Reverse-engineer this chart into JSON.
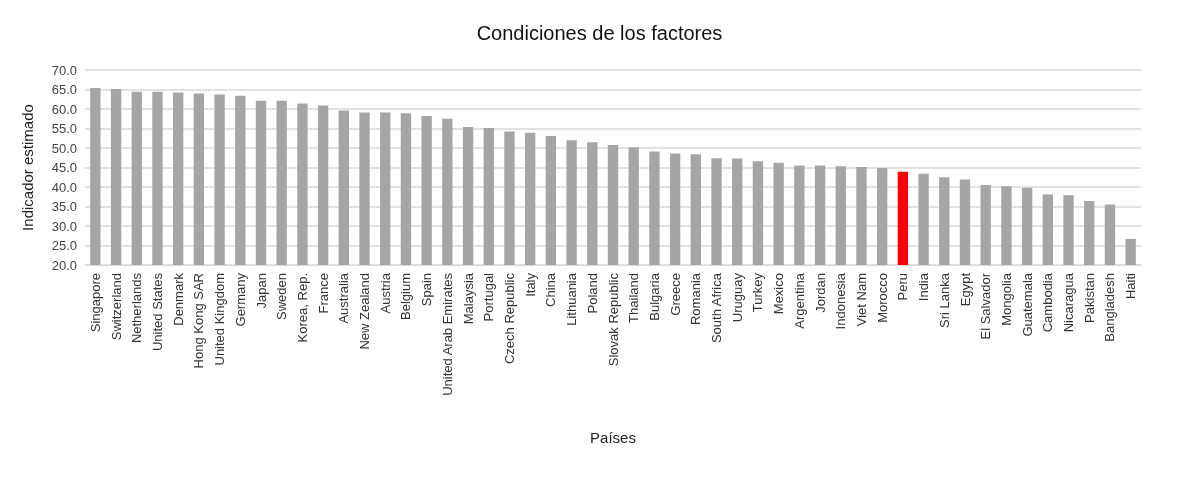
{
  "chart_data": {
    "type": "bar",
    "title": "Condiciones de los factores",
    "xlabel": "Países",
    "ylabel": "Indicador estimado",
    "categories": [
      "Singapore",
      "Switzerland",
      "Netherlands",
      "United States",
      "Denmark",
      "Hong Kong SAR",
      "United Kingdom",
      "Germany",
      "Japan",
      "Sweden",
      "Korea, Rep.",
      "France",
      "Australia",
      "New Zealand",
      "Austria",
      "Belgium",
      "Spain",
      "United Arab Emirates",
      "Malaysia",
      "Portugal",
      "Czech Republic",
      "Italy",
      "China",
      "Lithuania",
      "Poland",
      "Slovak Republic",
      "Thailand",
      "Bulgaria",
      "Greece",
      "Romania",
      "South Africa",
      "Uruguay",
      "Turkey",
      "Mexico",
      "Argentina",
      "Jordan",
      "Indonesia",
      "Viet Nam",
      "Morocco",
      "Peru",
      "India",
      "Sri Lanka",
      "Egypt",
      "El Salvador",
      "Mongolia",
      "Guatemala",
      "Cambodia",
      "Nicaragua",
      "Pakistan",
      "Bangladesh",
      "Haiti"
    ],
    "values": [
      65.4,
      65.1,
      64.4,
      64.4,
      64.2,
      64.0,
      63.7,
      63.4,
      62.1,
      62.1,
      61.4,
      60.9,
      59.6,
      59.1,
      59.1,
      58.9,
      58.2,
      57.5,
      55.4,
      55.1,
      54.2,
      53.9,
      53.1,
      52.0,
      51.5,
      50.8,
      50.2,
      49.1,
      48.6,
      48.4,
      47.4,
      47.3,
      46.6,
      46.2,
      45.5,
      45.5,
      45.3,
      45.1,
      44.9,
      43.9,
      43.4,
      42.5,
      41.9,
      40.5,
      40.2,
      39.8,
      38.1,
      37.9,
      36.4,
      35.5,
      26.7
    ],
    "colors": [
      "#a5a5a5",
      "#a5a5a5",
      "#a5a5a5",
      "#a5a5a5",
      "#a5a5a5",
      "#a5a5a5",
      "#a5a5a5",
      "#a5a5a5",
      "#a5a5a5",
      "#a5a5a5",
      "#a5a5a5",
      "#a5a5a5",
      "#a5a5a5",
      "#a5a5a5",
      "#a5a5a5",
      "#a5a5a5",
      "#a5a5a5",
      "#a5a5a5",
      "#a5a5a5",
      "#a5a5a5",
      "#a5a5a5",
      "#a5a5a5",
      "#a5a5a5",
      "#a5a5a5",
      "#a5a5a5",
      "#a5a5a5",
      "#a5a5a5",
      "#a5a5a5",
      "#a5a5a5",
      "#a5a5a5",
      "#a5a5a5",
      "#a5a5a5",
      "#a5a5a5",
      "#a5a5a5",
      "#a5a5a5",
      "#a5a5a5",
      "#a5a5a5",
      "#a5a5a5",
      "#a5a5a5",
      "#ff0000",
      "#a5a5a5",
      "#a5a5a5",
      "#a5a5a5",
      "#a5a5a5",
      "#a5a5a5",
      "#a5a5a5",
      "#a5a5a5",
      "#a5a5a5",
      "#a5a5a5",
      "#a5a5a5",
      "#a5a5a5"
    ],
    "ylim": [
      20,
      70
    ],
    "yticks": [
      {
        "value": 20,
        "label": "20.0"
      },
      {
        "value": 25,
        "label": "25.0"
      },
      {
        "value": 30,
        "label": "30.0"
      },
      {
        "value": 35,
        "label": "35.0"
      },
      {
        "value": 40,
        "label": "40.0"
      },
      {
        "value": 45,
        "label": "45.0"
      },
      {
        "value": 50,
        "label": "50.0"
      },
      {
        "value": 55,
        "label": "55.0"
      },
      {
        "value": 60,
        "label": "60.0"
      },
      {
        "value": 65,
        "label": "65.0"
      },
      {
        "value": 70,
        "label": "70.0"
      }
    ],
    "grid": "y"
  }
}
